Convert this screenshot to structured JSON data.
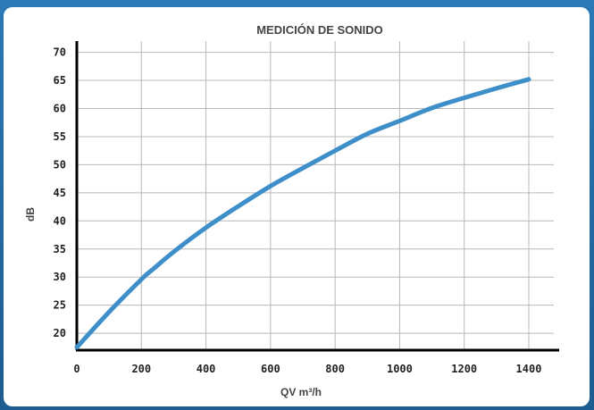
{
  "theme": {
    "frame_color": "#1f5f95",
    "panel_color": "#ffffff",
    "line_color": "#3d8ec9",
    "grid_color": "#b8b8b8",
    "axis_color": "#000000"
  },
  "chart_data": {
    "type": "line",
    "title": "MEDICIÓN DE SONIDO",
    "xlabel": "QV m³/h",
    "ylabel": "dB",
    "xlim": [
      0,
      1400
    ],
    "ylim": [
      17,
      72
    ],
    "x_ticks": [
      0,
      200,
      400,
      600,
      800,
      1000,
      1200,
      1400
    ],
    "y_ticks": [
      20,
      25,
      30,
      35,
      40,
      45,
      50,
      55,
      60,
      65,
      70
    ],
    "grid": true,
    "series": [
      {
        "x": [
          0,
          100,
          200,
          240,
          300,
          400,
          500,
          600,
          700,
          800,
          900,
          1000,
          1100,
          1200,
          1300,
          1400
        ],
        "y": [
          17.5,
          23.8,
          29.6,
          31.6,
          34.5,
          38.8,
          42.6,
          46.2,
          49.4,
          52.5,
          55.5,
          57.8,
          60.1,
          61.9,
          63.6,
          65.2
        ]
      }
    ]
  }
}
